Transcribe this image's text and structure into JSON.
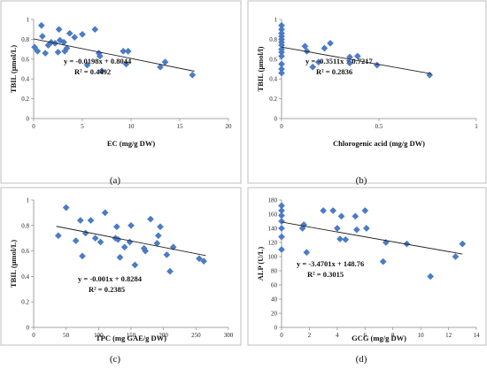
{
  "chart_data": [
    {
      "type": "scatter",
      "panel_label": "(a)",
      "xlabel": "EC (mg/g DW)",
      "ylabel": "TBIL (μmol/L)",
      "xlim": [
        0,
        20
      ],
      "ylim": [
        0,
        1
      ],
      "xticks": [
        0,
        5,
        10,
        15,
        20
      ],
      "yticks": [
        0,
        0.2,
        0.4,
        0.6,
        0.8,
        1
      ],
      "ytick_labels": [
        "0",
        "0.2",
        "0.4",
        "0.6",
        "0.8",
        "1"
      ],
      "equation": "y = -0.0198x + 0.8044",
      "r2": "R² = 0.4492",
      "trendline": {
        "slope": -0.0198,
        "intercept": 0.8044,
        "x_range": [
          0,
          16.5
        ]
      },
      "grid": false,
      "color": "#4a7cc9",
      "points": [
        {
          "x": 0.1,
          "y": 0.72
        },
        {
          "x": 0.4,
          "y": 0.68
        },
        {
          "x": 0.8,
          "y": 0.94
        },
        {
          "x": 0.9,
          "y": 0.83
        },
        {
          "x": 1.2,
          "y": 0.66
        },
        {
          "x": 1.5,
          "y": 0.74
        },
        {
          "x": 1.8,
          "y": 0.77
        },
        {
          "x": 2.2,
          "y": 0.76
        },
        {
          "x": 2.5,
          "y": 0.67
        },
        {
          "x": 2.6,
          "y": 0.9
        },
        {
          "x": 2.7,
          "y": 0.79
        },
        {
          "x": 3.1,
          "y": 0.77
        },
        {
          "x": 3.2,
          "y": 0.68
        },
        {
          "x": 3.4,
          "y": 0.71
        },
        {
          "x": 3.7,
          "y": 0.86
        },
        {
          "x": 4.2,
          "y": 0.82
        },
        {
          "x": 5.0,
          "y": 0.85
        },
        {
          "x": 5.5,
          "y": 0.54
        },
        {
          "x": 6.3,
          "y": 0.9
        },
        {
          "x": 6.7,
          "y": 0.66
        },
        {
          "x": 6.8,
          "y": 0.63
        },
        {
          "x": 7.0,
          "y": 0.48
        },
        {
          "x": 9.2,
          "y": 0.68
        },
        {
          "x": 9.5,
          "y": 0.55
        },
        {
          "x": 9.7,
          "y": 0.68
        },
        {
          "x": 13.0,
          "y": 0.52
        },
        {
          "x": 13.5,
          "y": 0.57
        },
        {
          "x": 16.3,
          "y": 0.44
        }
      ]
    },
    {
      "type": "scatter",
      "panel_label": "(b)",
      "xlabel": "Chlorogenic acid (mg/g DW)",
      "ylabel": "TBIL (μmol/l)",
      "xlim": [
        0,
        1
      ],
      "ylim": [
        0,
        1
      ],
      "xticks": [
        0,
        0.5,
        1
      ],
      "yticks": [
        0,
        0.2,
        0.4,
        0.6,
        0.8,
        1
      ],
      "ytick_labels": [
        "0",
        "0.2",
        "0.4",
        "0.6",
        "0.8",
        "1"
      ],
      "equation": "y = -0.3511x + 0.7217",
      "r2": "R² = 0.2836",
      "trendline": {
        "slope": -0.3511,
        "intercept": 0.7217,
        "x_range": [
          0,
          0.77
        ]
      },
      "grid": false,
      "color": "#4a7cc9",
      "points": [
        {
          "x": 0.0,
          "y": 0.94
        },
        {
          "x": 0.0,
          "y": 0.9
        },
        {
          "x": 0.0,
          "y": 0.86
        },
        {
          "x": 0.0,
          "y": 0.83
        },
        {
          "x": 0.0,
          "y": 0.8
        },
        {
          "x": 0.0,
          "y": 0.77
        },
        {
          "x": 0.0,
          "y": 0.74
        },
        {
          "x": 0.0,
          "y": 0.7
        },
        {
          "x": 0.0,
          "y": 0.67
        },
        {
          "x": 0.0,
          "y": 0.63
        },
        {
          "x": 0.0,
          "y": 0.55
        },
        {
          "x": 0.0,
          "y": 0.5
        },
        {
          "x": 0.0,
          "y": 0.46
        },
        {
          "x": 0.12,
          "y": 0.73
        },
        {
          "x": 0.13,
          "y": 0.68
        },
        {
          "x": 0.16,
          "y": 0.52
        },
        {
          "x": 0.19,
          "y": 0.57
        },
        {
          "x": 0.22,
          "y": 0.71
        },
        {
          "x": 0.25,
          "y": 0.76
        },
        {
          "x": 0.35,
          "y": 0.62
        },
        {
          "x": 0.35,
          "y": 0.56
        },
        {
          "x": 0.39,
          "y": 0.63
        },
        {
          "x": 0.49,
          "y": 0.54
        },
        {
          "x": 0.76,
          "y": 0.44
        }
      ]
    },
    {
      "type": "scatter",
      "panel_label": "(c)",
      "xlabel": "TPC (mg GAE/g DW)",
      "ylabel": "TBIL (μmol/L)",
      "xlim": [
        0,
        300
      ],
      "ylim": [
        0,
        1
      ],
      "xticks": [
        0,
        50,
        100,
        150,
        200,
        250,
        300
      ],
      "yticks": [
        0,
        0.2,
        0.4,
        0.6,
        0.8,
        1
      ],
      "ytick_labels": [
        "0",
        "0.2",
        "0.4",
        "0.6",
        "0.8",
        "1"
      ],
      "equation": "y = -0.001x + 0.8284",
      "r2": "R² = 0.2385",
      "trendline": {
        "slope": -0.001,
        "intercept": 0.8284,
        "x_range": [
          35,
          265
        ]
      },
      "grid": false,
      "color": "#4a7cc9",
      "points": [
        {
          "x": 38,
          "y": 0.72
        },
        {
          "x": 50,
          "y": 0.94
        },
        {
          "x": 65,
          "y": 0.68
        },
        {
          "x": 72,
          "y": 0.84
        },
        {
          "x": 75,
          "y": 0.56
        },
        {
          "x": 80,
          "y": 0.74
        },
        {
          "x": 88,
          "y": 0.84
        },
        {
          "x": 95,
          "y": 0.7
        },
        {
          "x": 103,
          "y": 0.67
        },
        {
          "x": 110,
          "y": 0.9
        },
        {
          "x": 126,
          "y": 0.7
        },
        {
          "x": 128,
          "y": 0.79
        },
        {
          "x": 130,
          "y": 0.69
        },
        {
          "x": 133,
          "y": 0.55
        },
        {
          "x": 140,
          "y": 0.63
        },
        {
          "x": 148,
          "y": 0.67
        },
        {
          "x": 150,
          "y": 0.8
        },
        {
          "x": 156,
          "y": 0.49
        },
        {
          "x": 170,
          "y": 0.62
        },
        {
          "x": 172,
          "y": 0.6
        },
        {
          "x": 180,
          "y": 0.85
        },
        {
          "x": 190,
          "y": 0.66
        },
        {
          "x": 192,
          "y": 0.72
        },
        {
          "x": 195,
          "y": 0.79
        },
        {
          "x": 205,
          "y": 0.57
        },
        {
          "x": 210,
          "y": 0.44
        },
        {
          "x": 215,
          "y": 0.63
        },
        {
          "x": 255,
          "y": 0.54
        },
        {
          "x": 262,
          "y": 0.52
        }
      ]
    },
    {
      "type": "scatter",
      "panel_label": "(d)",
      "xlabel": "GCG (mg/g DW)",
      "ylabel": "ALP (U/L)",
      "xlim": [
        0,
        14
      ],
      "ylim": [
        0,
        180
      ],
      "xticks": [
        0,
        2,
        4,
        6,
        8,
        10,
        12,
        14
      ],
      "yticks": [
        0,
        20,
        40,
        60,
        80,
        100,
        120,
        140,
        160,
        180
      ],
      "ytick_labels": [
        "0",
        "20",
        "40",
        "60",
        "80",
        "100",
        "120",
        "140",
        "160",
        "180"
      ],
      "equation": "y = -3.4701x + 148.76",
      "r2": "R² = 0.3015",
      "trendline": {
        "slope": -3.4701,
        "intercept": 148.76,
        "x_range": [
          0,
          13
        ]
      },
      "grid": false,
      "color": "#4a7cc9",
      "points": [
        {
          "x": 0.0,
          "y": 172
        },
        {
          "x": 0.0,
          "y": 165
        },
        {
          "x": 0.0,
          "y": 158
        },
        {
          "x": 0.0,
          "y": 150
        },
        {
          "x": 0.0,
          "y": 140
        },
        {
          "x": 0.0,
          "y": 128
        },
        {
          "x": 0.0,
          "y": 110
        },
        {
          "x": 1.5,
          "y": 140
        },
        {
          "x": 1.6,
          "y": 145
        },
        {
          "x": 1.8,
          "y": 106
        },
        {
          "x": 3.0,
          "y": 165
        },
        {
          "x": 3.7,
          "y": 165
        },
        {
          "x": 4.0,
          "y": 140
        },
        {
          "x": 4.2,
          "y": 125
        },
        {
          "x": 4.3,
          "y": 157
        },
        {
          "x": 4.6,
          "y": 124
        },
        {
          "x": 5.3,
          "y": 157
        },
        {
          "x": 5.4,
          "y": 138
        },
        {
          "x": 6.0,
          "y": 165
        },
        {
          "x": 6.1,
          "y": 140
        },
        {
          "x": 7.3,
          "y": 93
        },
        {
          "x": 7.5,
          "y": 120
        },
        {
          "x": 9.0,
          "y": 118
        },
        {
          "x": 10.7,
          "y": 72
        },
        {
          "x": 12.5,
          "y": 100
        },
        {
          "x": 13.0,
          "y": 118
        }
      ]
    }
  ]
}
